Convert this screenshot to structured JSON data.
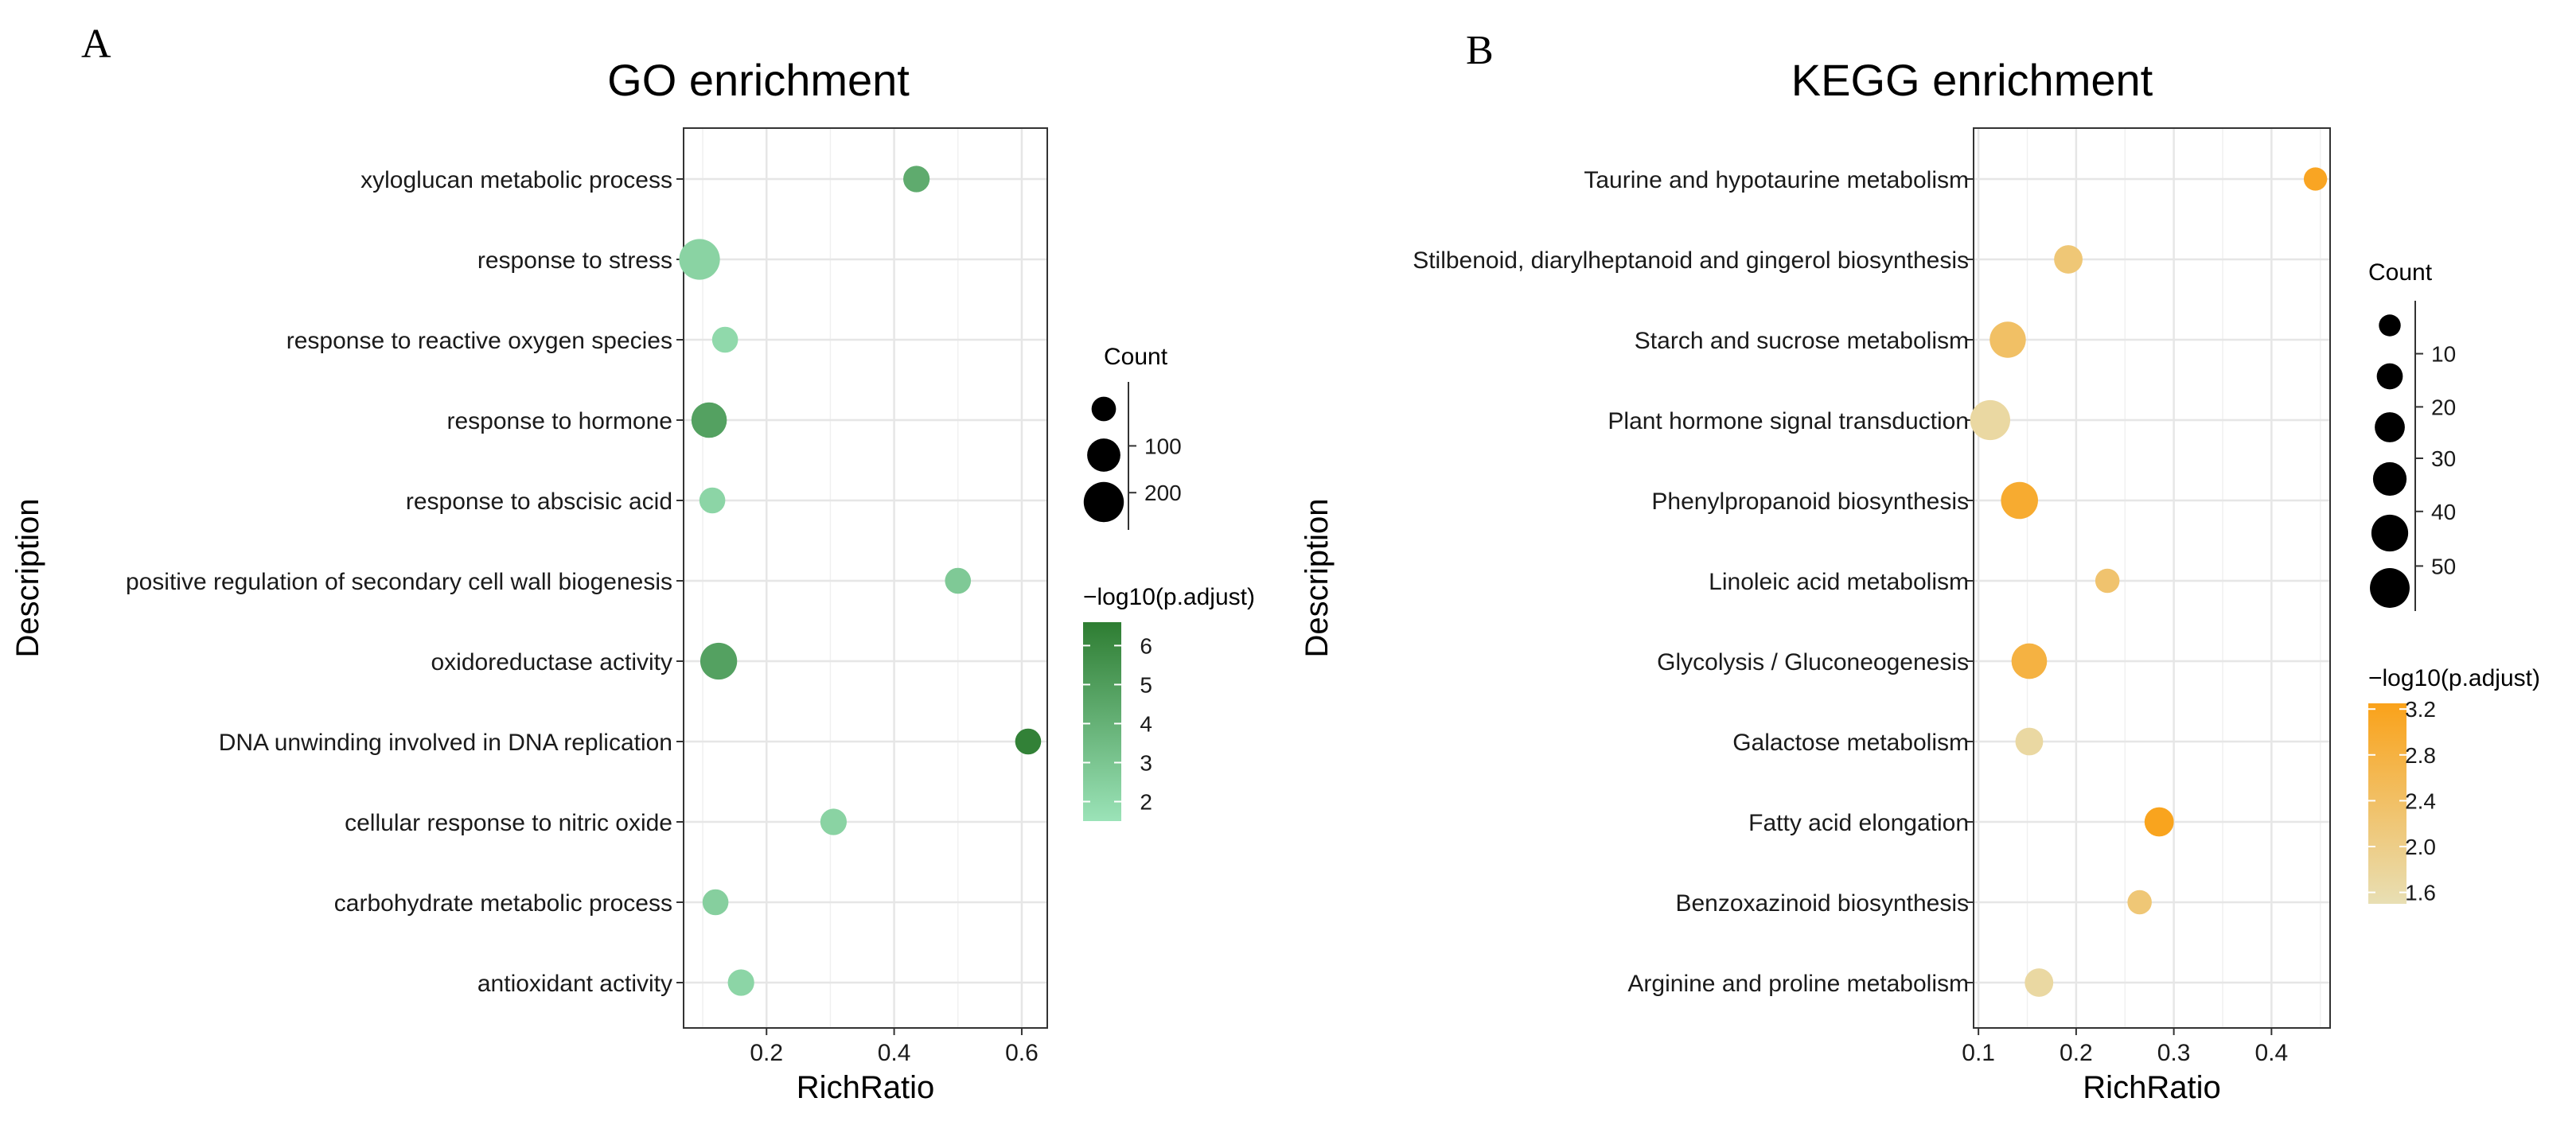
{
  "chart_data": [
    {
      "panel_label": "A",
      "type": "scatter",
      "title": "GO enrichment",
      "xlabel": "RichRatio",
      "ylabel": "Description",
      "xlim": [
        0.07,
        0.64
      ],
      "xticks": [
        0.2,
        0.4,
        0.6
      ],
      "xtick_labels": [
        "0.2",
        "0.4",
        "0.6"
      ],
      "grid": true,
      "categories": [
        "xyloglucan metabolic process",
        "response to stress",
        "response to reactive oxygen species",
        "response to hormone",
        "response to abscisic acid",
        "positive regulation of secondary cell wall biogenesis",
        "oxidoreductase activity",
        "DNA unwinding involved in DNA replication",
        "cellular response to nitric oxide",
        "carbohydrate metabolic process",
        "antioxidant activity"
      ],
      "rich_ratio": [
        0.435,
        0.095,
        0.135,
        0.11,
        0.115,
        0.5,
        0.125,
        0.61,
        0.305,
        0.12,
        0.16
      ],
      "count": [
        40,
        230,
        35,
        150,
        35,
        35,
        170,
        35,
        40,
        35,
        40
      ],
      "neg_log10_padj": [
        4.3,
        2.3,
        2.0,
        4.8,
        2.2,
        2.8,
        4.8,
        6.4,
        2.3,
        2.5,
        2.2
      ],
      "size_legend": {
        "title": "Count",
        "breaks": [
          100,
          200
        ],
        "labels": [
          "100",
          "200"
        ],
        "domain": [
          0,
          240
        ],
        "key_values": [
          20,
          120,
          220
        ]
      },
      "color_legend": {
        "title": "−log10(p.adjust)",
        "domain": [
          1.5,
          6.6
        ],
        "breaks": [
          2,
          3,
          4,
          5,
          6
        ],
        "labels": [
          "2",
          "3",
          "4",
          "5",
          "6"
        ],
        "low_color": "#9BE3B8",
        "high_color": "#2E7D32"
      },
      "legend_position": "right"
    },
    {
      "panel_label": "B",
      "type": "scatter",
      "title": "KEGG enrichment",
      "xlabel": "RichRatio",
      "ylabel": "Description",
      "xlim": [
        0.095,
        0.46
      ],
      "xticks": [
        0.1,
        0.2,
        0.3,
        0.4
      ],
      "xtick_labels": [
        "0.1",
        "0.2",
        "0.3",
        "0.4"
      ],
      "grid": true,
      "categories": [
        "Taurine and hypotaurine metabolism",
        "Stilbenoid, diarylheptanoid and gingerol biosynthesis",
        "Starch and sucrose metabolism",
        "Plant hormone signal transduction",
        "Phenylpropanoid biosynthesis",
        "Linoleic acid metabolism",
        "Glycolysis / Gluconeogenesis",
        "Galactose metabolism",
        "Fatty acid elongation",
        "Benzoxazinoid biosynthesis",
        "Arginine and proline metabolism"
      ],
      "rich_ratio": [
        0.445,
        0.192,
        0.13,
        0.112,
        0.142,
        0.232,
        0.152,
        0.152,
        0.285,
        0.265,
        0.162
      ],
      "count": [
        8,
        20,
        42,
        55,
        45,
        10,
        40,
        18,
        22,
        10,
        20
      ],
      "neg_log10_padj": [
        3.15,
        2.2,
        2.4,
        1.7,
        3.0,
        2.3,
        2.8,
        1.7,
        3.2,
        2.2,
        1.7
      ],
      "size_legend": {
        "title": "Count",
        "breaks": [
          10,
          20,
          30,
          40,
          50
        ],
        "labels": [
          "10",
          "20",
          "30",
          "40",
          "50"
        ],
        "domain": [
          0,
          60
        ],
        "key_values": [
          5,
          14,
          24,
          34,
          44,
          54
        ]
      },
      "color_legend": {
        "title": "−log10(p.adjust)",
        "domain": [
          1.5,
          3.25
        ],
        "breaks": [
          1.6,
          2.0,
          2.4,
          2.8,
          3.2
        ],
        "labels": [
          "1.6",
          "2.0",
          "2.4",
          "2.8",
          "3.2"
        ],
        "low_color": "#E8DFB4",
        "high_color": "#FAA21A"
      },
      "legend_position": "right"
    }
  ]
}
